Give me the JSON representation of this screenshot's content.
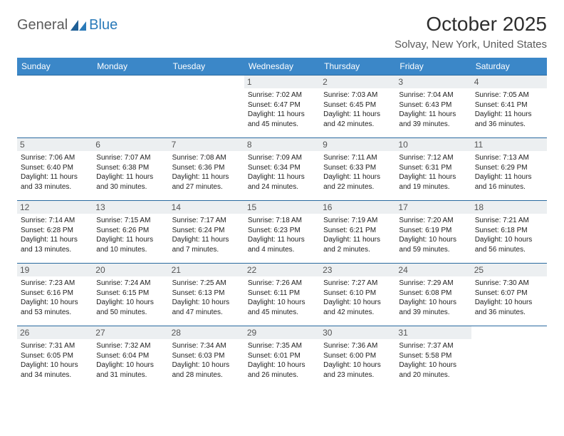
{
  "logo": {
    "text1": "General",
    "text2": "Blue"
  },
  "title": "October 2025",
  "location": "Solvay, New York, United States",
  "colors": {
    "header_bg": "#3b87c8",
    "header_text": "#ffffff",
    "row_border": "#2a6aa0",
    "daynum_bg": "#eceff1",
    "logo_gray": "#5b5b5b",
    "logo_blue": "#2a7ab9"
  },
  "day_headers": [
    "Sunday",
    "Monday",
    "Tuesday",
    "Wednesday",
    "Thursday",
    "Friday",
    "Saturday"
  ],
  "weeks": [
    [
      {
        "n": "",
        "sr": "",
        "ss": "",
        "dl": ""
      },
      {
        "n": "",
        "sr": "",
        "ss": "",
        "dl": ""
      },
      {
        "n": "",
        "sr": "",
        "ss": "",
        "dl": ""
      },
      {
        "n": "1",
        "sr": "Sunrise: 7:02 AM",
        "ss": "Sunset: 6:47 PM",
        "dl": "Daylight: 11 hours and 45 minutes."
      },
      {
        "n": "2",
        "sr": "Sunrise: 7:03 AM",
        "ss": "Sunset: 6:45 PM",
        "dl": "Daylight: 11 hours and 42 minutes."
      },
      {
        "n": "3",
        "sr": "Sunrise: 7:04 AM",
        "ss": "Sunset: 6:43 PM",
        "dl": "Daylight: 11 hours and 39 minutes."
      },
      {
        "n": "4",
        "sr": "Sunrise: 7:05 AM",
        "ss": "Sunset: 6:41 PM",
        "dl": "Daylight: 11 hours and 36 minutes."
      }
    ],
    [
      {
        "n": "5",
        "sr": "Sunrise: 7:06 AM",
        "ss": "Sunset: 6:40 PM",
        "dl": "Daylight: 11 hours and 33 minutes."
      },
      {
        "n": "6",
        "sr": "Sunrise: 7:07 AM",
        "ss": "Sunset: 6:38 PM",
        "dl": "Daylight: 11 hours and 30 minutes."
      },
      {
        "n": "7",
        "sr": "Sunrise: 7:08 AM",
        "ss": "Sunset: 6:36 PM",
        "dl": "Daylight: 11 hours and 27 minutes."
      },
      {
        "n": "8",
        "sr": "Sunrise: 7:09 AM",
        "ss": "Sunset: 6:34 PM",
        "dl": "Daylight: 11 hours and 24 minutes."
      },
      {
        "n": "9",
        "sr": "Sunrise: 7:11 AM",
        "ss": "Sunset: 6:33 PM",
        "dl": "Daylight: 11 hours and 22 minutes."
      },
      {
        "n": "10",
        "sr": "Sunrise: 7:12 AM",
        "ss": "Sunset: 6:31 PM",
        "dl": "Daylight: 11 hours and 19 minutes."
      },
      {
        "n": "11",
        "sr": "Sunrise: 7:13 AM",
        "ss": "Sunset: 6:29 PM",
        "dl": "Daylight: 11 hours and 16 minutes."
      }
    ],
    [
      {
        "n": "12",
        "sr": "Sunrise: 7:14 AM",
        "ss": "Sunset: 6:28 PM",
        "dl": "Daylight: 11 hours and 13 minutes."
      },
      {
        "n": "13",
        "sr": "Sunrise: 7:15 AM",
        "ss": "Sunset: 6:26 PM",
        "dl": "Daylight: 11 hours and 10 minutes."
      },
      {
        "n": "14",
        "sr": "Sunrise: 7:17 AM",
        "ss": "Sunset: 6:24 PM",
        "dl": "Daylight: 11 hours and 7 minutes."
      },
      {
        "n": "15",
        "sr": "Sunrise: 7:18 AM",
        "ss": "Sunset: 6:23 PM",
        "dl": "Daylight: 11 hours and 4 minutes."
      },
      {
        "n": "16",
        "sr": "Sunrise: 7:19 AM",
        "ss": "Sunset: 6:21 PM",
        "dl": "Daylight: 11 hours and 2 minutes."
      },
      {
        "n": "17",
        "sr": "Sunrise: 7:20 AM",
        "ss": "Sunset: 6:19 PM",
        "dl": "Daylight: 10 hours and 59 minutes."
      },
      {
        "n": "18",
        "sr": "Sunrise: 7:21 AM",
        "ss": "Sunset: 6:18 PM",
        "dl": "Daylight: 10 hours and 56 minutes."
      }
    ],
    [
      {
        "n": "19",
        "sr": "Sunrise: 7:23 AM",
        "ss": "Sunset: 6:16 PM",
        "dl": "Daylight: 10 hours and 53 minutes."
      },
      {
        "n": "20",
        "sr": "Sunrise: 7:24 AM",
        "ss": "Sunset: 6:15 PM",
        "dl": "Daylight: 10 hours and 50 minutes."
      },
      {
        "n": "21",
        "sr": "Sunrise: 7:25 AM",
        "ss": "Sunset: 6:13 PM",
        "dl": "Daylight: 10 hours and 47 minutes."
      },
      {
        "n": "22",
        "sr": "Sunrise: 7:26 AM",
        "ss": "Sunset: 6:11 PM",
        "dl": "Daylight: 10 hours and 45 minutes."
      },
      {
        "n": "23",
        "sr": "Sunrise: 7:27 AM",
        "ss": "Sunset: 6:10 PM",
        "dl": "Daylight: 10 hours and 42 minutes."
      },
      {
        "n": "24",
        "sr": "Sunrise: 7:29 AM",
        "ss": "Sunset: 6:08 PM",
        "dl": "Daylight: 10 hours and 39 minutes."
      },
      {
        "n": "25",
        "sr": "Sunrise: 7:30 AM",
        "ss": "Sunset: 6:07 PM",
        "dl": "Daylight: 10 hours and 36 minutes."
      }
    ],
    [
      {
        "n": "26",
        "sr": "Sunrise: 7:31 AM",
        "ss": "Sunset: 6:05 PM",
        "dl": "Daylight: 10 hours and 34 minutes."
      },
      {
        "n": "27",
        "sr": "Sunrise: 7:32 AM",
        "ss": "Sunset: 6:04 PM",
        "dl": "Daylight: 10 hours and 31 minutes."
      },
      {
        "n": "28",
        "sr": "Sunrise: 7:34 AM",
        "ss": "Sunset: 6:03 PM",
        "dl": "Daylight: 10 hours and 28 minutes."
      },
      {
        "n": "29",
        "sr": "Sunrise: 7:35 AM",
        "ss": "Sunset: 6:01 PM",
        "dl": "Daylight: 10 hours and 26 minutes."
      },
      {
        "n": "30",
        "sr": "Sunrise: 7:36 AM",
        "ss": "Sunset: 6:00 PM",
        "dl": "Daylight: 10 hours and 23 minutes."
      },
      {
        "n": "31",
        "sr": "Sunrise: 7:37 AM",
        "ss": "Sunset: 5:58 PM",
        "dl": "Daylight: 10 hours and 20 minutes."
      },
      {
        "n": "",
        "sr": "",
        "ss": "",
        "dl": ""
      }
    ]
  ]
}
